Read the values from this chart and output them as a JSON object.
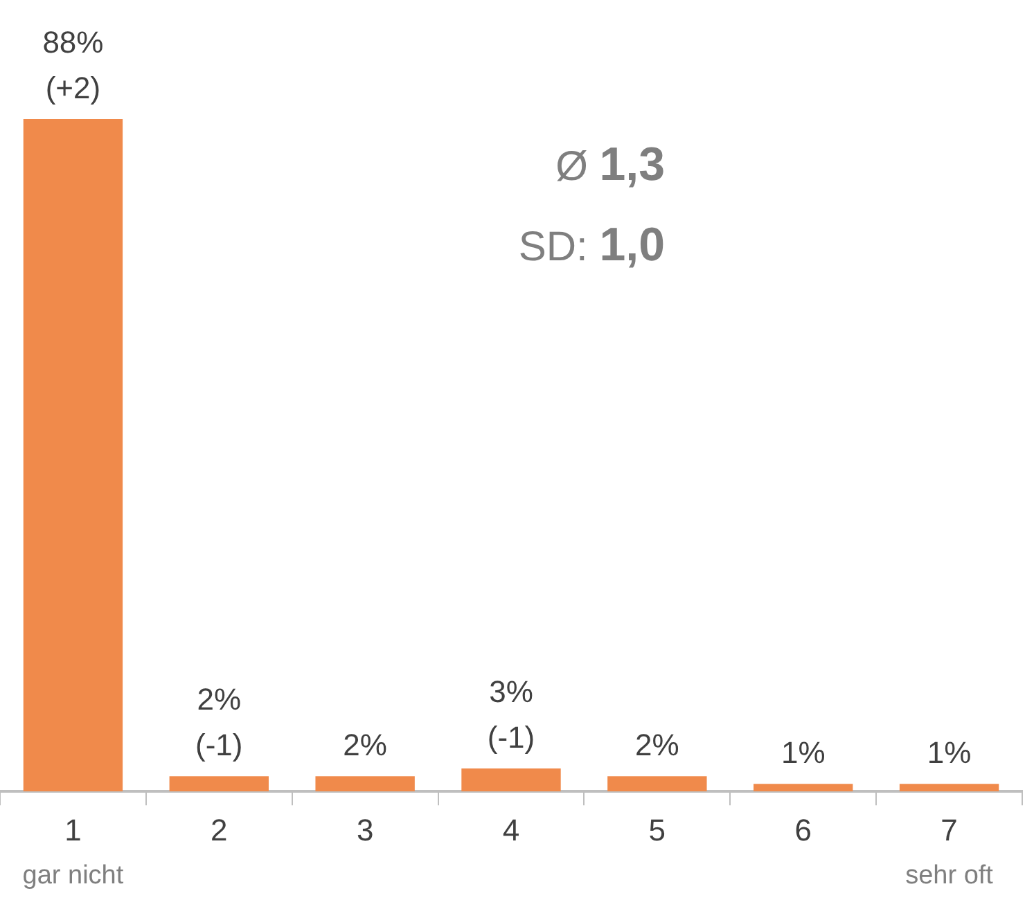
{
  "chart_data": {
    "type": "bar",
    "categories": [
      "1",
      "2",
      "3",
      "4",
      "5",
      "6",
      "7"
    ],
    "values": [
      88,
      2,
      2,
      3,
      2,
      1,
      1
    ],
    "value_labels": [
      "88%\n(+2)",
      "2%\n(-1)",
      "2%",
      "3%\n(-1)",
      "2%",
      "1%",
      "1%"
    ],
    "color": "#f08a4b",
    "annotations": [
      "Ø 1,3",
      "SD: 1,0",
      "gar nicht",
      "sehr oft"
    ],
    "grid": false,
    "legend": false
  }
}
